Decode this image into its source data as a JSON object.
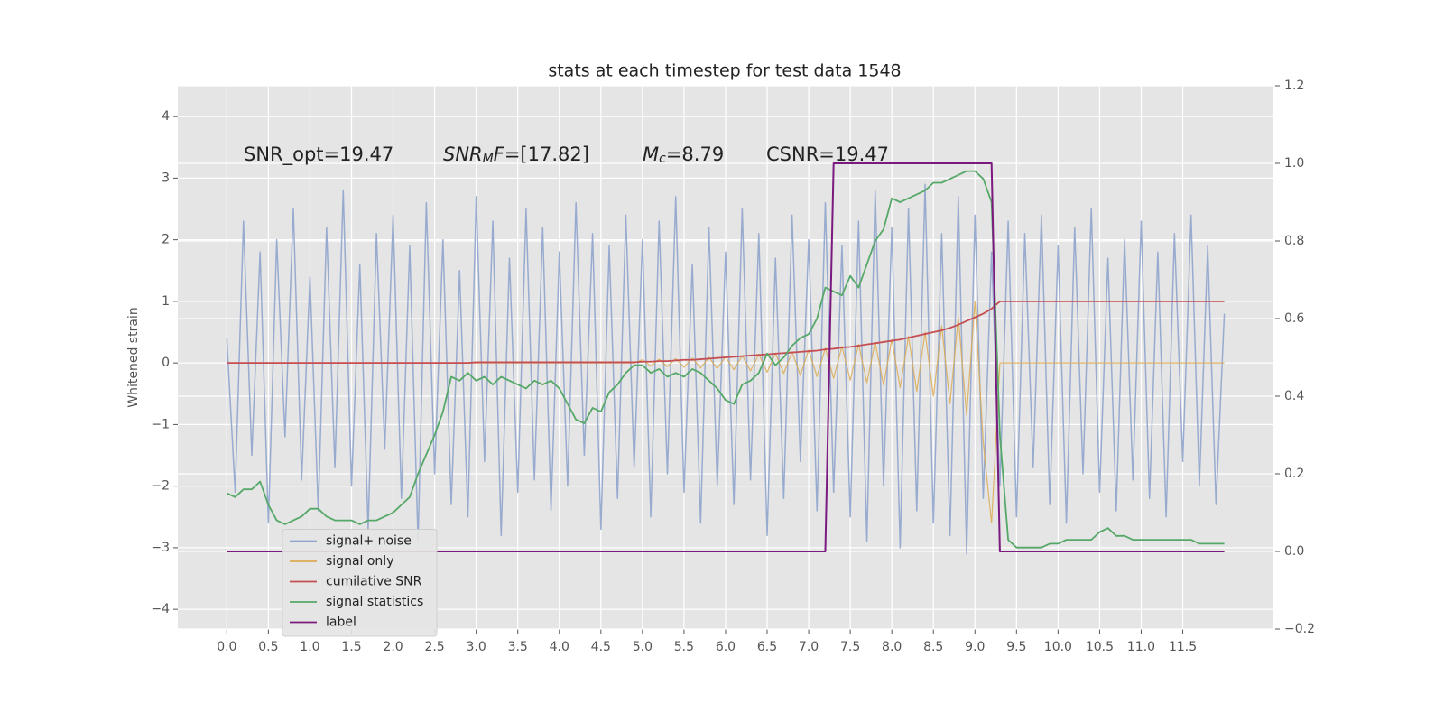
{
  "chart_data": {
    "type": "line",
    "title": "stats at each timestep for test data 1548",
    "y_label": "Whitened strain",
    "grid": true,
    "legend_loc": "lower left",
    "xlim": [
      -0.59,
      12.58
    ],
    "ylim": [
      -4.32,
      4.5
    ],
    "y2lim": [
      -0.2,
      1.2
    ],
    "xticks": [
      {
        "value": 0,
        "label": "0.0"
      },
      0.5,
      {
        "value": 1,
        "label": "1.0"
      },
      1.5,
      {
        "value": 2,
        "label": "2.0"
      },
      2.5,
      {
        "value": 3,
        "label": "3.0"
      },
      3.5,
      {
        "value": 4,
        "label": "4.0"
      },
      4.5,
      {
        "value": 5,
        "label": "5.0"
      },
      5.5,
      {
        "value": 6,
        "label": "6.0"
      },
      6.5,
      {
        "value": 7,
        "label": "7.0"
      },
      7.5,
      {
        "value": 8,
        "label": "8.0"
      },
      8.5,
      {
        "value": 9,
        "label": "9.0"
      },
      9.5,
      {
        "value": 10,
        "label": "10.0"
      },
      10.5,
      {
        "value": 11,
        "label": "11.0"
      },
      11.5
    ],
    "yticks": [
      {
        "value": -4,
        "label": "−4"
      },
      {
        "value": -3,
        "label": "−3"
      },
      {
        "value": -2,
        "label": "−2"
      },
      {
        "value": -1,
        "label": "−1"
      },
      0,
      1,
      2,
      3,
      4
    ],
    "y2ticks": [
      {
        "value": -0.2,
        "label": "−0.2"
      },
      {
        "value": 0,
        "label": "0.0"
      },
      0.2,
      0.4,
      0.6,
      0.8,
      {
        "value": 1,
        "label": "1.0"
      },
      1.2
    ],
    "annotations": [
      {
        "segments": [
          {
            "text": "SNR_opt=19.47"
          }
        ]
      },
      {
        "segments": [
          {
            "text": "SNR",
            "math": true
          },
          {
            "text": "M",
            "math": true,
            "sub": true
          },
          {
            "text": "F",
            "math": true
          },
          {
            "text": "=[17.82]"
          }
        ]
      },
      {
        "segments": [
          {
            "text": "M",
            "math": true
          },
          {
            "text": "c",
            "math": true,
            "sub": true
          },
          {
            "text": "=8.79"
          }
        ]
      },
      {
        "segments": [
          {
            "text": "CSNR=19.47"
          }
        ]
      }
    ],
    "x": [
      0,
      0.1,
      0.2,
      0.3,
      0.4,
      0.5,
      0.6,
      0.7,
      0.8,
      0.9,
      1,
      1.1,
      1.2,
      1.3,
      1.4,
      1.5,
      1.6,
      1.7,
      1.8,
      1.9,
      2,
      2.1,
      2.2,
      2.3,
      2.4,
      2.5,
      2.6,
      2.7,
      2.8,
      2.9,
      3,
      3.1,
      3.2,
      3.3,
      3.4,
      3.5,
      3.6,
      3.7,
      3.8,
      3.9,
      4,
      4.1,
      4.2,
      4.3,
      4.4,
      4.5,
      4.6,
      4.7,
      4.8,
      4.9,
      5,
      5.1,
      5.2,
      5.3,
      5.4,
      5.5,
      5.6,
      5.7,
      5.8,
      5.9,
      6,
      6.1,
      6.2,
      6.3,
      6.4,
      6.5,
      6.6,
      6.7,
      6.8,
      6.9,
      7,
      7.1,
      7.2,
      7.3,
      7.4,
      7.5,
      7.6,
      7.7,
      7.8,
      7.9,
      8,
      8.1,
      8.2,
      8.3,
      8.4,
      8.5,
      8.6,
      8.7,
      8.8,
      8.9,
      9,
      9.1,
      9.2,
      9.3,
      9.4,
      9.5,
      9.6,
      9.7,
      9.8,
      9.9,
      10,
      10.1,
      10.2,
      10.3,
      10.4,
      10.5,
      10.6,
      10.7,
      10.8,
      10.9,
      11,
      11.1,
      11.2,
      11.3,
      11.4,
      11.5,
      11.6,
      11.7,
      11.8,
      11.9,
      12
    ],
    "series": [
      {
        "name": "signal+ noise",
        "color": "#8fa4cc",
        "axis": "y",
        "values": [
          0.4,
          -2.1,
          2.3,
          -1.5,
          1.8,
          -2.6,
          2.0,
          -1.2,
          2.5,
          -1.9,
          1.4,
          -2.4,
          2.2,
          -1.7,
          2.8,
          -2.0,
          1.6,
          -2.7,
          2.1,
          -1.4,
          2.4,
          -2.2,
          1.9,
          -2.9,
          2.6,
          -1.8,
          2.0,
          -2.3,
          1.5,
          -2.5,
          2.7,
          -1.6,
          2.3,
          -2.8,
          1.7,
          -2.1,
          2.5,
          -1.9,
          2.2,
          -2.4,
          1.8,
          -2.0,
          2.6,
          -1.5,
          2.1,
          -2.7,
          1.9,
          -2.2,
          2.4,
          -1.7,
          2.0,
          -2.5,
          2.3,
          -1.8,
          2.7,
          -2.1,
          1.6,
          -2.6,
          2.2,
          -2.0,
          1.8,
          -2.3,
          2.5,
          -1.9,
          2.1,
          -2.8,
          1.7,
          -2.2,
          2.4,
          -1.6,
          2.0,
          -2.4,
          2.6,
          -2.1,
          1.9,
          -2.5,
          2.3,
          -2.9,
          2.8,
          -2.0,
          2.2,
          -3.0,
          2.5,
          -2.4,
          2.9,
          -2.6,
          2.1,
          -2.8,
          2.7,
          -3.1,
          2.4,
          -2.2,
          1.8,
          -2.0,
          2.3,
          -2.5,
          2.1,
          -1.7,
          2.4,
          -2.3,
          1.9,
          -2.6,
          2.2,
          -1.8,
          2.5,
          -2.1,
          1.7,
          -2.4,
          2.0,
          -1.9,
          2.3,
          -2.2,
          1.8,
          -2.5,
          2.1,
          -1.6,
          2.4,
          -2.0,
          1.9,
          -2.3,
          0.8
        ]
      },
      {
        "name": "signal only",
        "color": "#dcaa52",
        "axis": "y",
        "values": [
          0,
          0,
          0,
          0,
          0,
          0,
          0,
          0,
          0,
          0,
          0,
          0,
          0,
          0,
          0,
          0,
          0,
          0,
          0,
          0,
          0,
          0,
          0,
          0,
          0,
          0,
          0,
          0,
          0,
          0,
          0,
          0,
          0,
          0,
          0,
          0,
          0,
          0,
          0,
          0,
          0,
          0,
          0,
          0,
          0,
          0,
          0,
          0,
          0,
          0,
          0.05,
          -0.05,
          0.06,
          -0.06,
          0.07,
          -0.07,
          0.08,
          -0.08,
          0.09,
          -0.09,
          0.1,
          -0.11,
          0.12,
          -0.13,
          0.14,
          -0.15,
          0.16,
          -0.17,
          0.18,
          -0.2,
          0.21,
          -0.22,
          0.24,
          -0.25,
          0.27,
          -0.28,
          0.3,
          -0.32,
          0.34,
          -0.36,
          0.38,
          -0.4,
          0.43,
          -0.46,
          0.5,
          -0.54,
          0.6,
          -0.66,
          0.74,
          -0.85,
          1.0,
          -1.3,
          -2.6,
          0,
          0,
          0,
          0,
          0,
          0,
          0,
          0,
          0,
          0,
          0,
          0,
          0,
          0,
          0,
          0,
          0,
          0,
          0,
          0,
          0,
          0,
          0,
          0,
          0,
          0,
          0,
          0
        ]
      },
      {
        "name": "cumilative SNR",
        "color": "#c44e52",
        "axis": "y",
        "values": [
          0,
          0,
          0,
          0,
          0,
          0,
          0,
          0,
          0,
          0,
          0,
          0,
          0,
          0,
          0,
          0,
          0,
          0,
          0,
          0,
          0,
          0,
          0,
          0,
          0,
          0,
          0,
          0,
          0,
          0,
          0.01,
          0.01,
          0.01,
          0.01,
          0.01,
          0.01,
          0.01,
          0.01,
          0.01,
          0.01,
          0.01,
          0.01,
          0.01,
          0.01,
          0.01,
          0.01,
          0.01,
          0.01,
          0.01,
          0.01,
          0.02,
          0.02,
          0.03,
          0.03,
          0.04,
          0.05,
          0.05,
          0.06,
          0.07,
          0.08,
          0.09,
          0.1,
          0.11,
          0.12,
          0.13,
          0.14,
          0.15,
          0.16,
          0.17,
          0.18,
          0.19,
          0.2,
          0.22,
          0.23,
          0.25,
          0.26,
          0.28,
          0.3,
          0.32,
          0.34,
          0.36,
          0.38,
          0.41,
          0.44,
          0.47,
          0.5,
          0.53,
          0.57,
          0.62,
          0.68,
          0.74,
          0.8,
          0.88,
          1,
          1,
          1,
          1,
          1,
          1,
          1,
          1,
          1,
          1,
          1,
          1,
          1,
          1,
          1,
          1,
          1,
          1,
          1,
          1,
          1,
          1,
          1,
          1,
          1,
          1,
          1,
          1
        ]
      },
      {
        "name": "signal statistics",
        "color": "#55a868",
        "axis": "y2",
        "values": [
          0.15,
          0.14,
          0.16,
          0.16,
          0.18,
          0.12,
          0.08,
          0.07,
          0.08,
          0.09,
          0.11,
          0.11,
          0.09,
          0.08,
          0.08,
          0.08,
          0.07,
          0.08,
          0.08,
          0.09,
          0.1,
          0.12,
          0.14,
          0.2,
          0.25,
          0.3,
          0.36,
          0.45,
          0.44,
          0.46,
          0.44,
          0.45,
          0.43,
          0.45,
          0.44,
          0.43,
          0.42,
          0.44,
          0.43,
          0.44,
          0.42,
          0.38,
          0.34,
          0.33,
          0.37,
          0.36,
          0.41,
          0.43,
          0.46,
          0.48,
          0.48,
          0.46,
          0.47,
          0.45,
          0.46,
          0.45,
          0.47,
          0.46,
          0.44,
          0.42,
          0.39,
          0.38,
          0.43,
          0.44,
          0.46,
          0.51,
          0.48,
          0.5,
          0.53,
          0.55,
          0.56,
          0.6,
          0.68,
          0.67,
          0.66,
          0.71,
          0.68,
          0.74,
          0.8,
          0.83,
          0.91,
          0.9,
          0.91,
          0.92,
          0.93,
          0.95,
          0.95,
          0.96,
          0.97,
          0.98,
          0.98,
          0.96,
          0.9,
          0.3,
          0.03,
          0.01,
          0.01,
          0.01,
          0.01,
          0.02,
          0.02,
          0.03,
          0.03,
          0.03,
          0.03,
          0.05,
          0.06,
          0.04,
          0.04,
          0.03,
          0.03,
          0.03,
          0.03,
          0.03,
          0.03,
          0.03,
          0.03,
          0.02,
          0.02,
          0.02,
          0.02
        ]
      },
      {
        "name": "label",
        "color": "#7b1a7e",
        "axis": "y2",
        "values": [
          0,
          0,
          0,
          0,
          0,
          0,
          0,
          0,
          0,
          0,
          0,
          0,
          0,
          0,
          0,
          0,
          0,
          0,
          0,
          0,
          0,
          0,
          0,
          0,
          0,
          0,
          0,
          0,
          0,
          0,
          0,
          0,
          0,
          0,
          0,
          0,
          0,
          0,
          0,
          0,
          0,
          0,
          0,
          0,
          0,
          0,
          0,
          0,
          0,
          0,
          0,
          0,
          0,
          0,
          0,
          0,
          0,
          0,
          0,
          0,
          0,
          0,
          0,
          0,
          0,
          0,
          0,
          0,
          0,
          0,
          0,
          0,
          0,
          1,
          1,
          1,
          1,
          1,
          1,
          1,
          1,
          1,
          1,
          1,
          1,
          1,
          1,
          1,
          1,
          1,
          1,
          1,
          1,
          0,
          0,
          0,
          0,
          0,
          0,
          0,
          0,
          0,
          0,
          0,
          0,
          0,
          0,
          0,
          0,
          0,
          0,
          0,
          0,
          0,
          0,
          0,
          0,
          0,
          0,
          0,
          0
        ]
      }
    ]
  }
}
